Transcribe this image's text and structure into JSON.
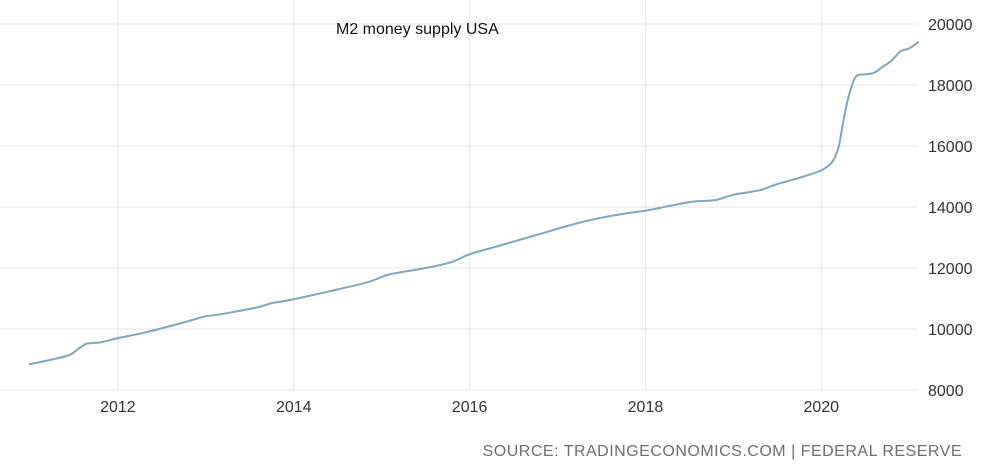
{
  "chart_data": {
    "type": "line",
    "title": "M2 money supply USA",
    "source": "SOURCE: TRADINGECONOMICS.COM | FEDERAL RESERVE",
    "xlabel": "",
    "ylabel": "",
    "x_ticks": [
      "2012",
      "2014",
      "2016",
      "2018",
      "2020"
    ],
    "x_tick_values": [
      2012,
      2014,
      2016,
      2018,
      2020
    ],
    "y_ticks": [
      "8000",
      "10000",
      "12000",
      "14000",
      "16000",
      "18000",
      "20000"
    ],
    "y_tick_values": [
      8000,
      10000,
      12000,
      14000,
      16000,
      18000,
      20000
    ],
    "xlim": [
      2011.0,
      2021.1
    ],
    "ylim": [
      8000,
      20000
    ],
    "grid": true,
    "colors": {
      "line": "#7fa6bf",
      "grid": "#e6e6e6"
    },
    "series": [
      {
        "name": "M2 money supply USA",
        "x": [
          2011.0,
          2011.25,
          2011.45,
          2011.55,
          2011.65,
          2011.8,
          2012.0,
          2012.3,
          2012.6,
          2012.85,
          2013.0,
          2013.1,
          2013.3,
          2013.6,
          2013.75,
          2013.9,
          2014.2,
          2014.5,
          2014.8,
          2015.0,
          2015.1,
          2015.5,
          2015.8,
          2016.0,
          2016.3,
          2016.6,
          2016.9,
          2017.2,
          2017.5,
          2017.8,
          2018.0,
          2018.3,
          2018.55,
          2018.8,
          2019.0,
          2019.3,
          2019.5,
          2019.8,
          2020.0,
          2020.1,
          2020.15,
          2020.2,
          2020.25,
          2020.3,
          2020.35,
          2020.4,
          2020.5,
          2020.6,
          2020.7,
          2020.8,
          2020.9,
          2021.0,
          2021.1
        ],
        "values": [
          8850,
          9000,
          9150,
          9350,
          9520,
          9560,
          9700,
          9880,
          10100,
          10300,
          10420,
          10450,
          10550,
          10720,
          10850,
          10920,
          11100,
          11300,
          11500,
          11700,
          11800,
          12000,
          12200,
          12450,
          12700,
          12950,
          13200,
          13450,
          13650,
          13800,
          13880,
          14050,
          14180,
          14230,
          14400,
          14550,
          14750,
          15000,
          15200,
          15400,
          15600,
          16000,
          16800,
          17500,
          18000,
          18300,
          18350,
          18400,
          18600,
          18800,
          19100,
          19200,
          19400
        ]
      }
    ]
  }
}
